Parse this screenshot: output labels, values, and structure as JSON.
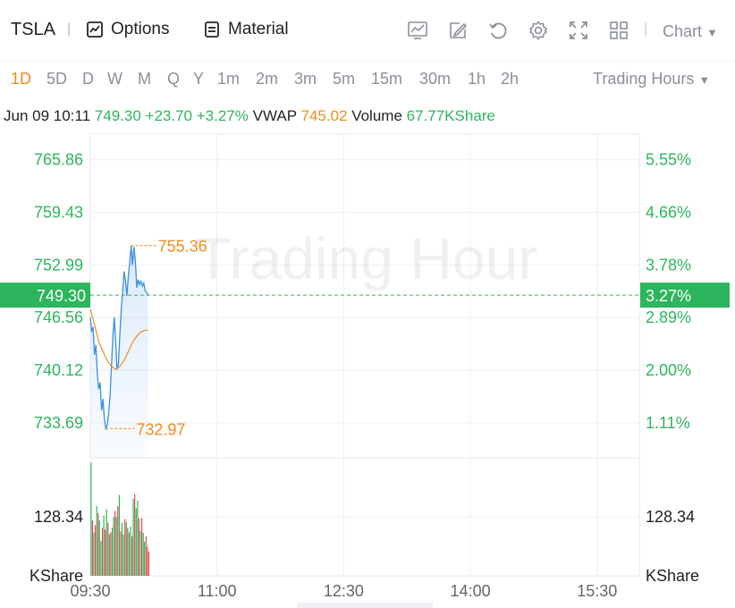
{
  "toolbar": {
    "ticker": "TSLA",
    "options_label": "Options",
    "material_label": "Material",
    "chart_label": "Chart",
    "icons": [
      "indicator-icon",
      "draw-icon",
      "undo-icon",
      "gear-icon",
      "fullscreen-icon",
      "grid-icon",
      "chevron-down-icon"
    ]
  },
  "periods": [
    "1D",
    "5D",
    "D",
    "W",
    "M",
    "Q",
    "Y",
    "1m",
    "2m",
    "3m",
    "5m",
    "15m",
    "30m",
    "1h",
    "2h"
  ],
  "active_period": "1D",
  "trading_hours_label": "Trading Hours",
  "info": {
    "datetime": "Jun 09 10:11",
    "price": "749.30",
    "change": "+23.70",
    "change_pct": "+3.27%",
    "vwap_label": "VWAP",
    "vwap": "745.02",
    "volume_label": "Volume",
    "volume": "67.77KShare"
  },
  "colors": {
    "up": "#2db55d",
    "down": "#e5484d",
    "accent": "#f08c1a",
    "price_line": "#3a8ee6",
    "vwap_line": "#f08c1a"
  },
  "chart_data": {
    "type": "line",
    "watermark": "Trading Hour",
    "ylim": [
      729.4,
      769.0
    ],
    "left_ticks": [
      "765.86",
      "759.43",
      "752.99",
      "746.56",
      "740.12",
      "733.69"
    ],
    "left_tick_values": [
      765.86,
      759.43,
      752.99,
      746.56,
      740.12,
      733.69
    ],
    "right_ticks": [
      "5.55%",
      "4.66%",
      "3.78%",
      "2.89%",
      "2.00%",
      "1.11%"
    ],
    "current_price_label": "749.30",
    "current_price": 749.3,
    "current_pct_label": "3.27%",
    "high_label": "755.36",
    "high": 755.36,
    "low_label": "732.97",
    "low": 732.97,
    "x_ticks": [
      "09:30",
      "11:00",
      "12:30",
      "14:00",
      "15:30"
    ],
    "x_tick_minutes": [
      0,
      90,
      180,
      270,
      360
    ],
    "x_range_minutes": [
      0,
      390
    ],
    "price_series": {
      "minutes": [
        0,
        1,
        2,
        3,
        4,
        5,
        6,
        7,
        8,
        9,
        10,
        11,
        12,
        13,
        14,
        15,
        16,
        17,
        18,
        19,
        20,
        21,
        22,
        23,
        24,
        25,
        26,
        27,
        28,
        29,
        30,
        31,
        32,
        33,
        34,
        35,
        36,
        37,
        38,
        39,
        40,
        41
      ],
      "values": [
        746.6,
        744.8,
        745.4,
        742.0,
        743.2,
        739.6,
        737.8,
        738.6,
        735.2,
        736.6,
        734.2,
        732.97,
        733.4,
        734.8,
        736.9,
        740.5,
        744.2,
        746.6,
        743.8,
        740.2,
        741.0,
        744.6,
        747.6,
        749.7,
        752.2,
        751.0,
        749.2,
        751.6,
        753.3,
        755.36,
        753.0,
        755.2,
        753.4,
        750.2,
        751.2,
        750.6,
        751.0,
        750.4,
        750.8,
        749.8,
        749.6,
        749.3
      ]
    },
    "vwap_series": {
      "minutes": [
        0,
        3,
        6,
        9,
        12,
        15,
        18,
        21,
        24,
        27,
        30,
        33,
        36,
        39,
        41
      ],
      "values": [
        747.6,
        745.7,
        743.6,
        742.4,
        741.3,
        740.6,
        740.2,
        740.6,
        741.3,
        742.4,
        743.5,
        744.3,
        744.8,
        745.0,
        745.0
      ]
    },
    "volume": {
      "tick_label": "128.34",
      "unit": "KShare",
      "ylim": [
        0,
        245
      ],
      "minutes": [
        0,
        1,
        2,
        3,
        4,
        5,
        6,
        7,
        8,
        9,
        10,
        11,
        12,
        13,
        14,
        15,
        16,
        17,
        18,
        19,
        20,
        21,
        22,
        23,
        24,
        25,
        26,
        27,
        28,
        29,
        30,
        31,
        32,
        33,
        34,
        35,
        36,
        37,
        38,
        39,
        40,
        41
      ],
      "values": [
        235,
        115,
        90,
        105,
        145,
        130,
        115,
        72,
        100,
        125,
        96,
        138,
        110,
        86,
        90,
        100,
        122,
        135,
        122,
        145,
        168,
        92,
        110,
        86,
        118,
        112,
        99,
        90,
        102,
        82,
        160,
        170,
        140,
        156,
        119,
        93,
        120,
        89,
        71,
        82,
        60,
        50
      ],
      "up": [
        true,
        false,
        true,
        false,
        true,
        false,
        true,
        true,
        false,
        true,
        false,
        true,
        false,
        true,
        false,
        true,
        true,
        false,
        true,
        false,
        true,
        false,
        true,
        true,
        false,
        true,
        false,
        true,
        true,
        false,
        true,
        false,
        true,
        true,
        false,
        true,
        false,
        true,
        true,
        false,
        false,
        false
      ]
    }
  }
}
